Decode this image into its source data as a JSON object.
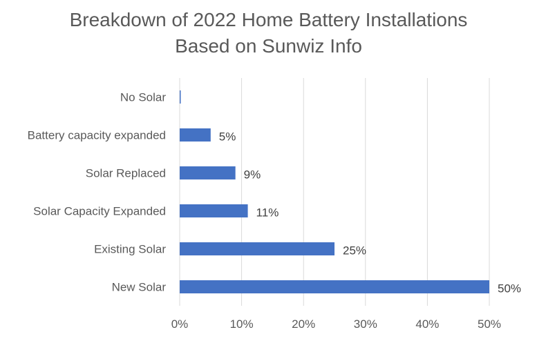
{
  "chart_data": {
    "type": "bar",
    "orientation": "horizontal",
    "title_lines": [
      "Breakdown of 2022 Home Battery Installations",
      "Based on Sunwiz Info"
    ],
    "categories": [
      "No Solar",
      "Battery capacity expanded",
      "Solar Replaced",
      "Solar Capacity Expanded",
      "Existing Solar",
      "New Solar"
    ],
    "values": [
      0.1,
      5,
      9,
      11,
      25,
      50
    ],
    "data_labels": [
      "",
      "5%",
      "9%",
      "11%",
      "25%",
      "50%"
    ],
    "xlim": [
      0,
      50
    ],
    "x_ticks": [
      0,
      10,
      20,
      30,
      40,
      50
    ],
    "x_tick_labels": [
      "0%",
      "10%",
      "20%",
      "30%",
      "40%",
      "50%"
    ],
    "grid": true,
    "legend": "none",
    "colors": {
      "bar": "#4472C4",
      "grid": "#D9D9D9",
      "text": "#595959"
    }
  }
}
